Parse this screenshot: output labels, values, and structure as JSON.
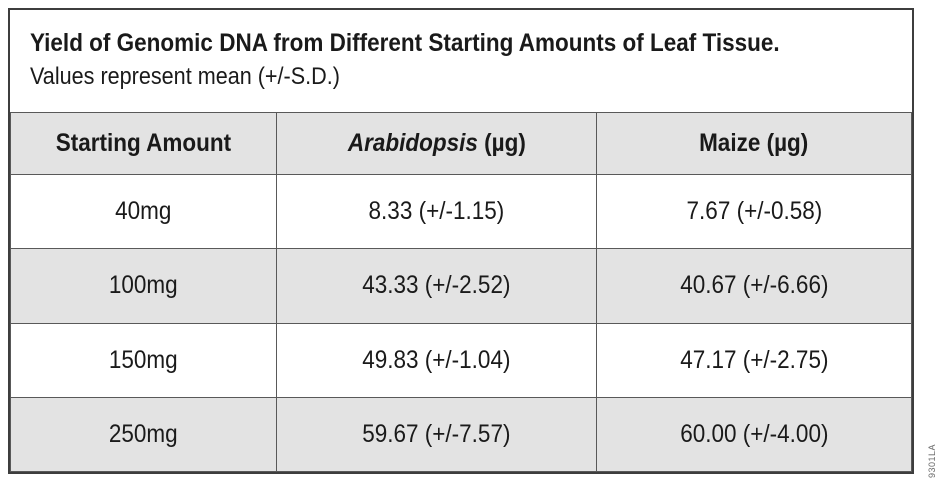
{
  "figure": {
    "title": "Yield of Genomic DNA from Different Starting Amounts of Leaf Tissue.",
    "subtitle": "Values represent mean (+/-S.D.)",
    "part_code": "9301LA"
  },
  "table": {
    "headers": {
      "starting_amount": "Starting Amount",
      "arabidopsis_italic": "Arabidopsis",
      "arabidopsis_rest": " (µg)",
      "maize": "Maize (µg)"
    },
    "rows": [
      {
        "amount": "40mg",
        "arabidopsis": "8.33 (+/-1.15)",
        "maize": "7.67 (+/-0.58)"
      },
      {
        "amount": "100mg",
        "arabidopsis": "43.33 (+/-2.52)",
        "maize": "40.67 (+/-6.66)"
      },
      {
        "amount": "150mg",
        "arabidopsis": "49.83 (+/-1.04)",
        "maize": "47.17 (+/-2.75)"
      },
      {
        "amount": "250mg",
        "arabidopsis": "59.67 (+/-7.57)",
        "maize": "60.00 (+/-4.00)"
      }
    ]
  },
  "colors": {
    "row_shaded": "#e3e3e3",
    "grid_line": "#595959",
    "outer_border": "#3d3d3d",
    "text": "#1a1a1a",
    "code_text": "#6a6a6a"
  },
  "chart_data": {
    "type": "table",
    "title": "Yield of Genomic DNA from Different Starting Amounts of Leaf Tissue.",
    "subtitle": "Values represent mean (+/-S.D.)",
    "columns": [
      "Starting Amount",
      "Arabidopsis (µg)",
      "Maize (µg)"
    ],
    "categories": [
      "40mg",
      "100mg",
      "150mg",
      "250mg"
    ],
    "series": [
      {
        "name": "Arabidopsis (µg)",
        "mean": [
          8.33,
          43.33,
          49.83,
          59.67
        ],
        "sd": [
          1.15,
          2.52,
          1.04,
          7.57
        ]
      },
      {
        "name": "Maize (µg)",
        "mean": [
          7.67,
          40.67,
          47.17,
          60.0
        ],
        "sd": [
          0.58,
          6.66,
          2.75,
          4.0
        ]
      }
    ],
    "layout": {
      "shaded_rows": "header and even data rows",
      "grid": true
    }
  }
}
